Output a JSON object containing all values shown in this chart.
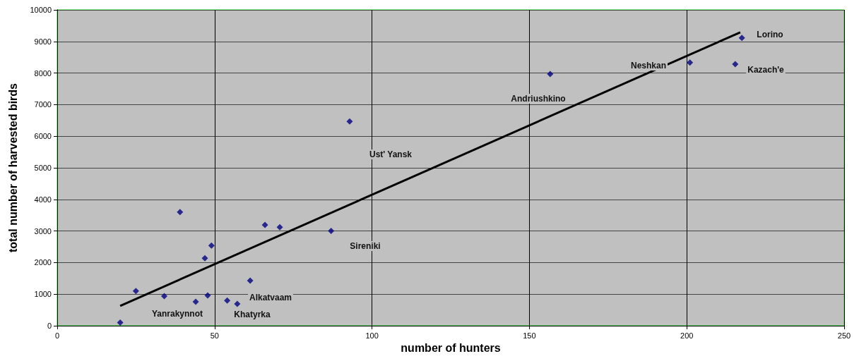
{
  "chart_data": {
    "type": "scatter",
    "xlabel": "number of hunters",
    "ylabel": "total number of harvested birds",
    "x": [
      20,
      25,
      34,
      39,
      44,
      46.9,
      47.8,
      49,
      54,
      57.2,
      61.3,
      66,
      70.7,
      87,
      92.9,
      156.6,
      201,
      215.4,
      217.5
    ],
    "series": [
      {
        "color": "#000080",
        "marker": "diamond",
        "values": [
          100,
          1100,
          940,
          3600,
          760,
          2140,
          960,
          2540,
          800,
          690,
          1430,
          3190,
          3120,
          3000,
          6470,
          7970,
          8330,
          8280,
          9110
        ]
      },
      {
        "type": "line",
        "color": "#000000",
        "x": [
          20,
          217
        ],
        "values": [
          630,
          9290
        ]
      }
    ],
    "xlim": [
      0,
      250
    ],
    "xticks": [
      0,
      50,
      100,
      150,
      200,
      250
    ],
    "ylim": [
      0,
      10000
    ],
    "yticks": [
      0,
      1000,
      2000,
      3000,
      4000,
      5000,
      6000,
      7000,
      8000,
      9000,
      10000
    ],
    "grid": true,
    "annotations": [
      "Yanrakynnot",
      "Khatyrka",
      "Alkatvaam",
      "Sireniki",
      "Ust' Yansk",
      "Andriushkino",
      "Neshkan",
      "Kazach'e",
      "Lorino"
    ]
  }
}
